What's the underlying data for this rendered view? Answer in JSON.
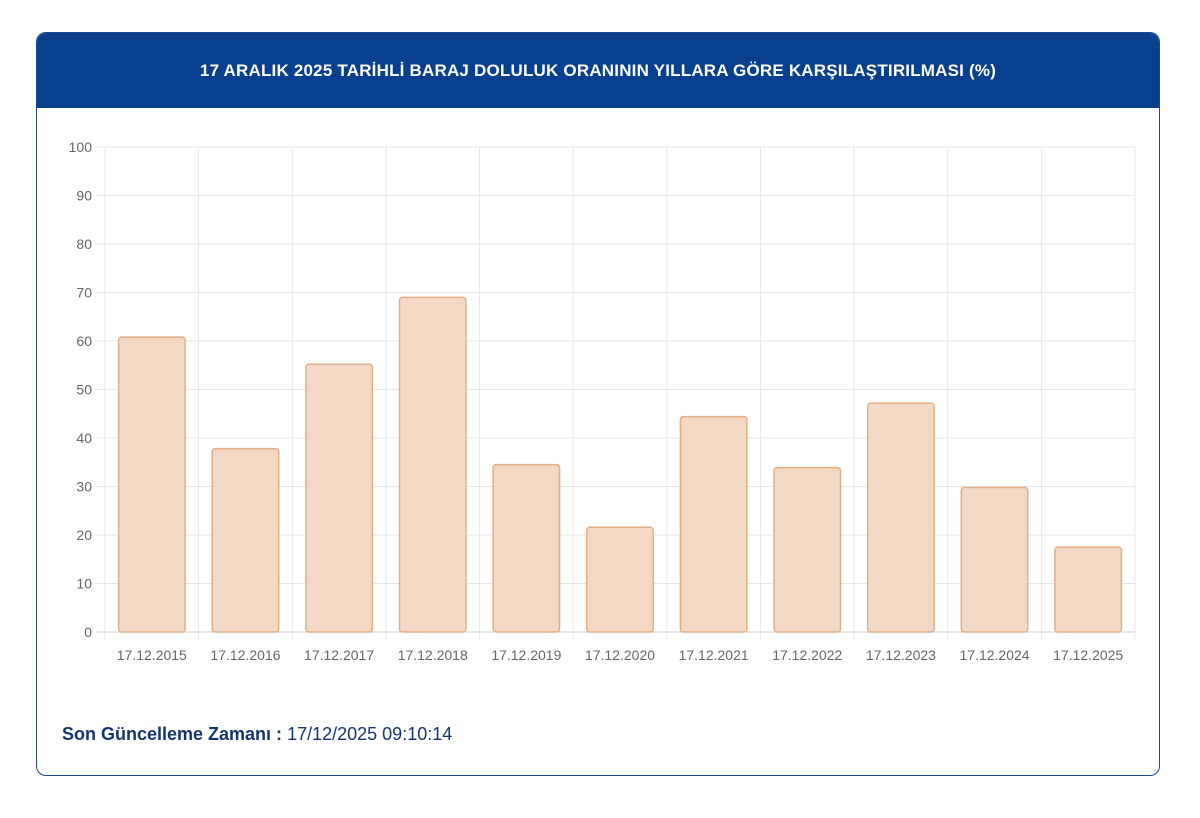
{
  "header": {
    "title": "17 ARALIK 2025 TARİHLİ BARAJ DOLULUK ORANININ YILLARA GÖRE KARŞILAŞTIRILMASI (%)"
  },
  "footer": {
    "label": "Son Güncelleme Zamanı :",
    "value": "17/12/2025 09:10:14"
  },
  "colors": {
    "header_bg": "#083f8e",
    "bar_fill": "#f3d9c5",
    "bar_stroke": "#e3ae86",
    "accent": "#14366e"
  },
  "chart_data": {
    "type": "bar",
    "title": "17 ARALIK 2025 TARİHLİ BARAJ DOLULUK ORANININ YILLARA GÖRE KARŞILAŞTIRILMASI (%)",
    "categories": [
      "17.12.2015",
      "17.12.2016",
      "17.12.2017",
      "17.12.2018",
      "17.12.2019",
      "17.12.2020",
      "17.12.2021",
      "17.12.2022",
      "17.12.2023",
      "17.12.2024",
      "17.12.2025"
    ],
    "values": [
      60.8,
      37.8,
      55.2,
      69.0,
      34.5,
      21.6,
      44.4,
      33.9,
      47.2,
      29.8,
      17.5
    ],
    "yticks": [
      0,
      10,
      20,
      30,
      40,
      50,
      60,
      70,
      80,
      90,
      100
    ],
    "ylim": [
      0,
      100
    ],
    "xlabel": "",
    "ylabel": "",
    "grid": true,
    "legend": "none"
  }
}
